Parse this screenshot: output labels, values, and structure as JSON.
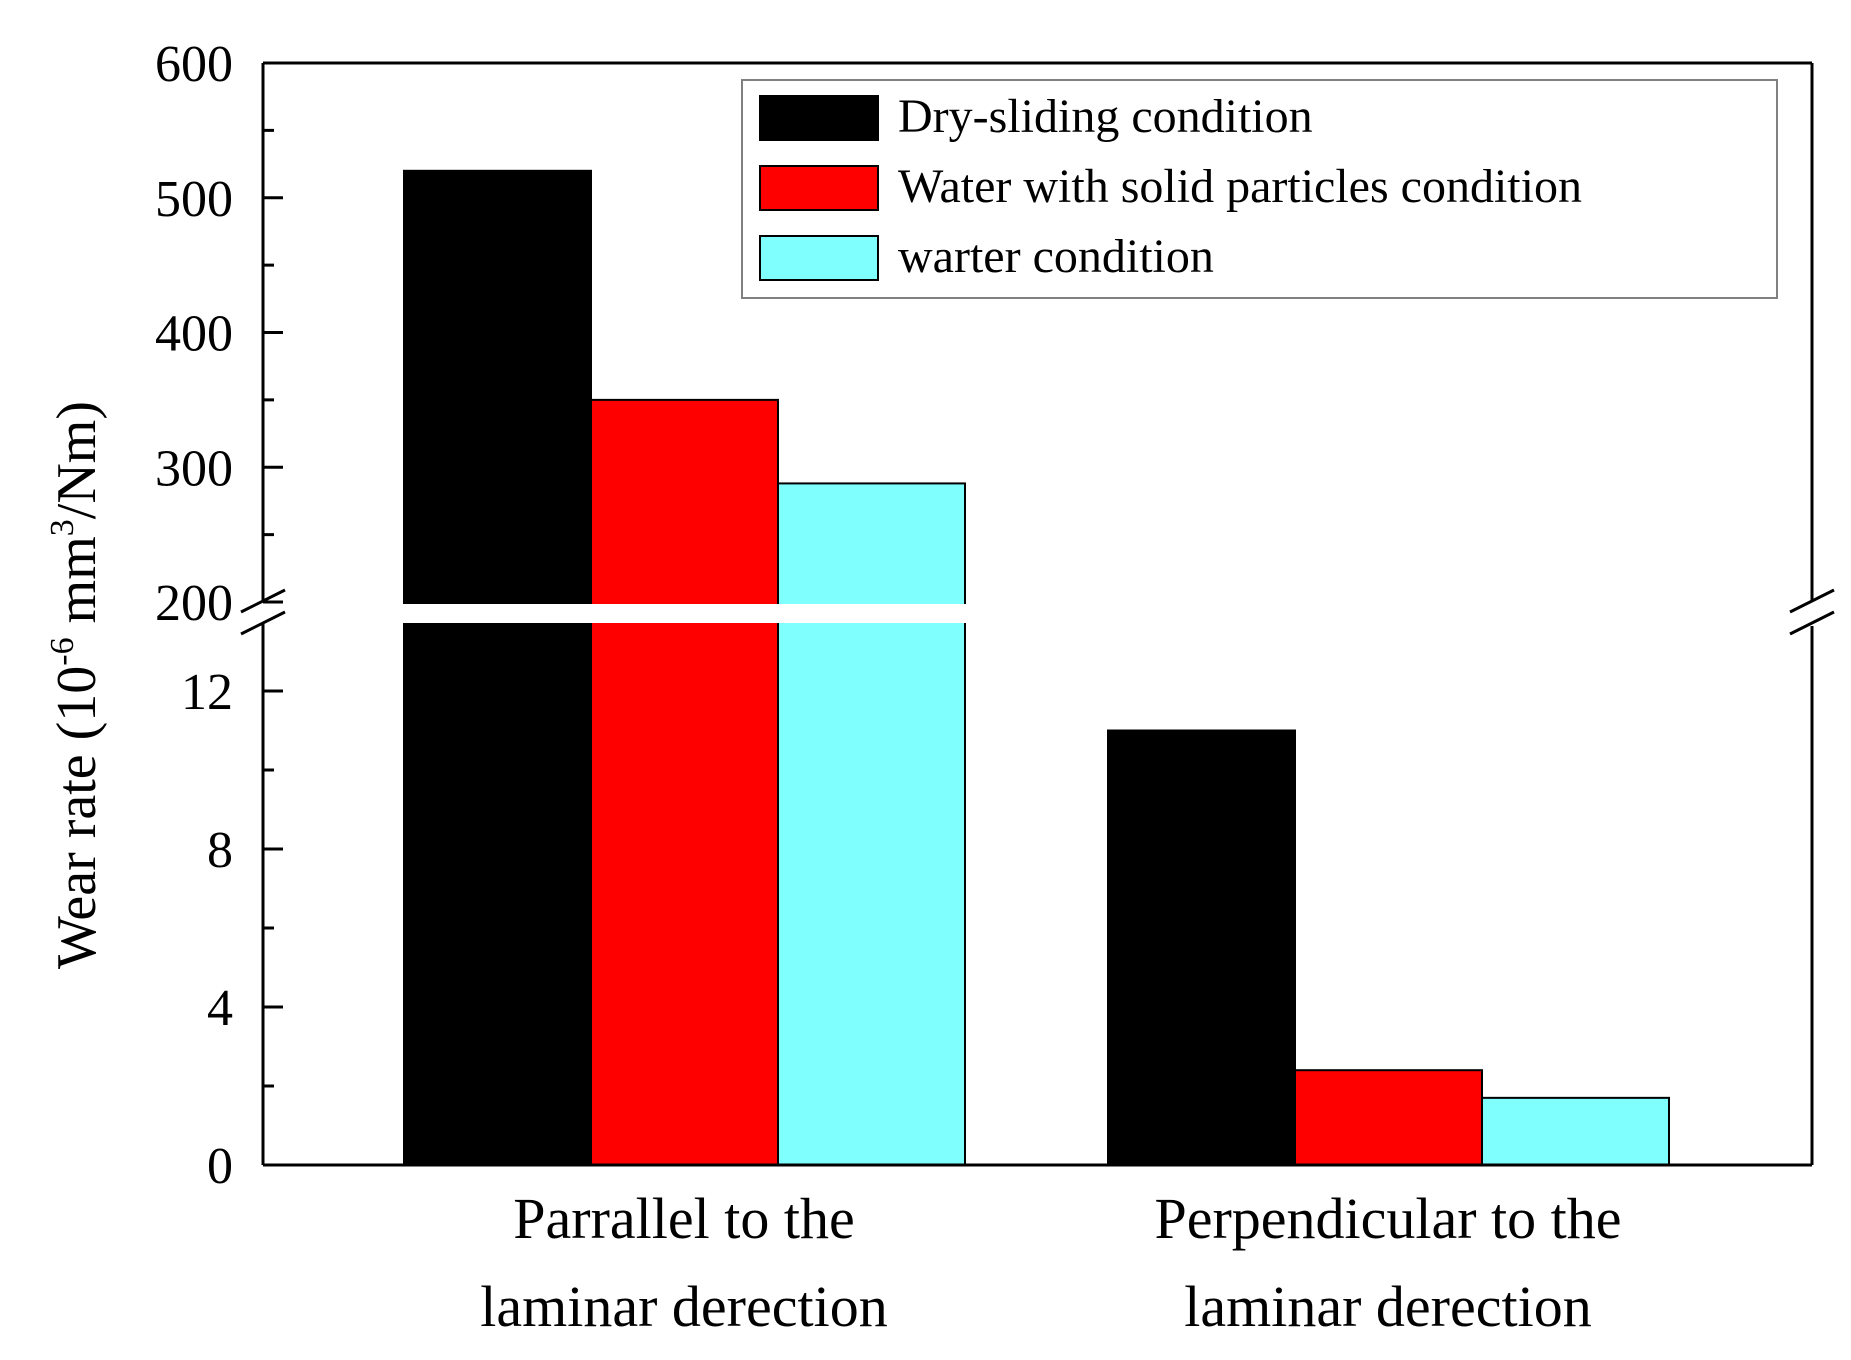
{
  "chart_data": {
    "type": "bar",
    "categories": [
      [
        "Parrallel to the",
        "laminar derection"
      ],
      [
        "Perpendicular to the",
        "laminar derection"
      ]
    ],
    "series": [
      {
        "name": "Dry-sliding condition",
        "color": "#000000",
        "values": [
          520,
          11
        ]
      },
      {
        "name": "Water with solid particles condition",
        "color": "#ff0000",
        "values": [
          350,
          2.4
        ]
      },
      {
        "name": "warter condition",
        "color": "#80ffff",
        "values": [
          288,
          1.7
        ]
      }
    ],
    "ylabel": {
      "prefix": "Wear rate (10",
      "exp1": "-6",
      "mid": " mm",
      "exp2": "3",
      "suffix": "/Nm)"
    },
    "y_axis_break": true,
    "y_lower_range": [
      0,
      14
    ],
    "y_upper_range": [
      200,
      600
    ],
    "y_lower_ticks": [
      "0",
      "4",
      "8",
      "12"
    ],
    "y_upper_ticks": [
      "200",
      "300",
      "400",
      "500",
      "600"
    ],
    "legend_position": "top-right"
  }
}
